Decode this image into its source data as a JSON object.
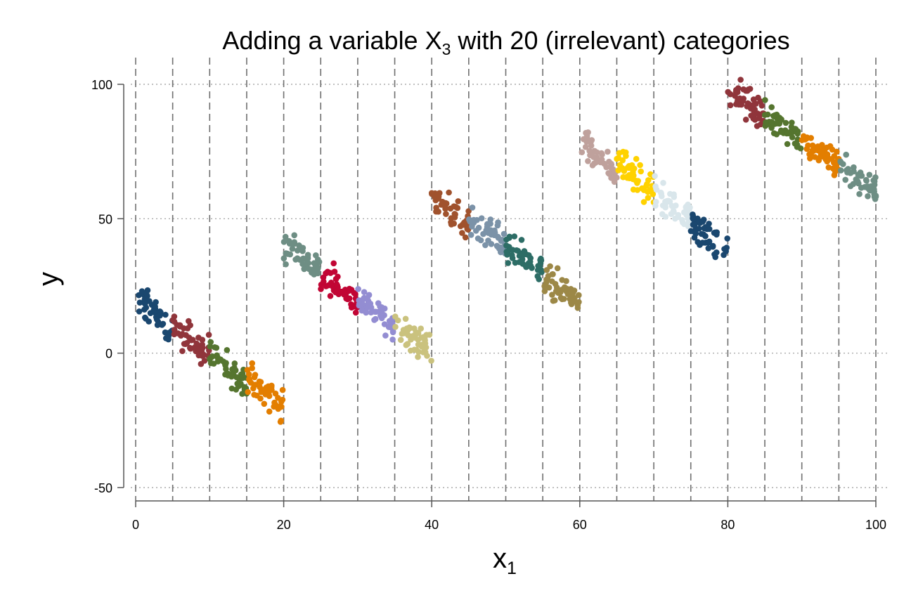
{
  "chart_data": {
    "type": "scatter",
    "title_main": "Adding a variable X",
    "title_sub": "3",
    "title_rest": " with 20 (irrelevant) categories",
    "xlabel_main": "x",
    "xlabel_sub": "1",
    "ylabel": "y",
    "xlim": [
      0,
      100
    ],
    "ylim": [
      -50,
      100
    ],
    "xticks": [
      0,
      20,
      40,
      60,
      80,
      100
    ],
    "xtick_labels": [
      "0",
      "20",
      "40",
      "60",
      "80",
      "100"
    ],
    "yticks": [
      -50,
      0,
      50,
      100
    ],
    "ytick_labels": [
      "-50",
      "0",
      "50",
      "100"
    ],
    "category_boundaries": [
      0,
      5,
      10,
      15,
      20,
      25,
      30,
      35,
      40,
      45,
      50,
      55,
      60,
      65,
      70,
      75,
      80,
      85,
      90,
      95,
      100
    ],
    "grid_y": true,
    "series": [
      {
        "color": "#1a476f",
        "x_range": [
          0,
          5
        ],
        "y_start": 21,
        "y_end": 8
      },
      {
        "color": "#90353b",
        "x_range": [
          5,
          10
        ],
        "y_start": 10,
        "y_end": 0
      },
      {
        "color": "#55752f",
        "x_range": [
          10,
          15
        ],
        "y_start": 0,
        "y_end": -12
      },
      {
        "color": "#e37e00",
        "x_range": [
          15,
          20
        ],
        "y_start": -8,
        "y_end": -20
      },
      {
        "color": "#6e8e84",
        "x_range": [
          20,
          25
        ],
        "y_start": 40,
        "y_end": 32
      },
      {
        "color": "#c10534",
        "x_range": [
          25,
          30
        ],
        "y_start": 30,
        "y_end": 18
      },
      {
        "color": "#938dd2",
        "x_range": [
          30,
          35
        ],
        "y_start": 19,
        "y_end": 12
      },
      {
        "color": "#cac27e",
        "x_range": [
          35,
          40
        ],
        "y_start": 11,
        "y_end": 1
      },
      {
        "color": "#a0522d",
        "x_range": [
          40,
          45
        ],
        "y_start": 58,
        "y_end": 48
      },
      {
        "color": "#7b92a8",
        "x_range": [
          45,
          50
        ],
        "y_start": 49,
        "y_end": 40
      },
      {
        "color": "#2d6d66",
        "x_range": [
          50,
          55
        ],
        "y_start": 38,
        "y_end": 31
      },
      {
        "color": "#9c8847",
        "x_range": [
          55,
          60
        ],
        "y_start": 28,
        "y_end": 19
      },
      {
        "color": "#bfa19c",
        "x_range": [
          60,
          65
        ],
        "y_start": 79,
        "y_end": 68
      },
      {
        "color": "#ffd200",
        "x_range": [
          65,
          70
        ],
        "y_start": 71,
        "y_end": 60
      },
      {
        "color": "#d9e6eb",
        "x_range": [
          70,
          75
        ],
        "y_start": 59,
        "y_end": 51
      },
      {
        "color": "#1a476f",
        "x_range": [
          75,
          80
        ],
        "y_start": 48,
        "y_end": 38
      },
      {
        "color": "#90353b",
        "x_range": [
          80,
          85
        ],
        "y_start": 99,
        "y_end": 88
      },
      {
        "color": "#55752f",
        "x_range": [
          85,
          90
        ],
        "y_start": 89,
        "y_end": 80
      },
      {
        "color": "#e37e00",
        "x_range": [
          90,
          95
        ],
        "y_start": 79,
        "y_end": 70
      },
      {
        "color": "#6e8e84",
        "x_range": [
          95,
          100
        ],
        "y_start": 70,
        "y_end": 61
      }
    ]
  }
}
